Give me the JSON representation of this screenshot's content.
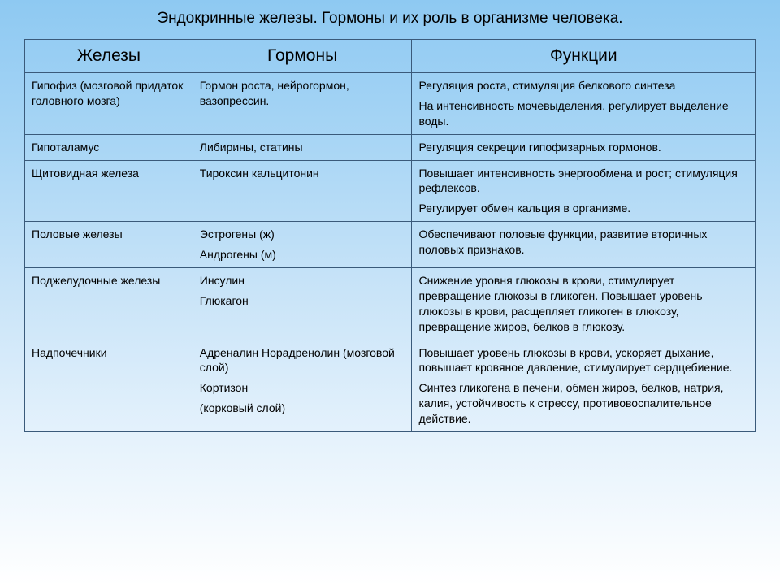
{
  "title": "Эндокринные железы. Гормоны и их роль в организме человека.",
  "columns": [
    "Железы",
    "Гормоны",
    "Функции"
  ],
  "column_widths_pct": [
    23,
    30,
    47
  ],
  "border_color": "#3a5a7a",
  "background_gradient": [
    "#8ec9f2",
    "#a9d6f5",
    "#c9e4f8",
    "#e5f2fc",
    "#ffffff"
  ],
  "title_fontsize_pt": 19,
  "header_fontsize_pt": 21,
  "cell_fontsize_pt": 14,
  "text_color": "#000000",
  "rows": [
    {
      "gland": "Гипофиз (мозговой придаток головного мозга)",
      "hormones": [
        "Гормон роста, нейрогормон, вазопрессин."
      ],
      "functions": [
        "Регуляция роста, стимуляция белкового синтеза",
        "На интенсивность мочевыделения, регулирует выделение воды."
      ]
    },
    {
      "gland": "Гипоталамус",
      "hormones": [
        "Либирины, статины"
      ],
      "functions": [
        "Регуляция секреции гипофизарных гормонов."
      ]
    },
    {
      "gland": "Щитовидная железа",
      "hormones": [
        "Тироксин кальцитонин"
      ],
      "functions": [
        "Повышает интенсивность энергообмена и рост; стимуляция рефлексов.",
        "Регулирует обмен кальция в организме."
      ]
    },
    {
      "gland": "Половые железы",
      "hormones": [
        "Эстрогены (ж)",
        "Андрогены (м)"
      ],
      "functions": [
        "Обеспечивают половые функции, развитие вторичных половых признаков."
      ]
    },
    {
      "gland": "Поджелудочные железы",
      "hormones": [
        "Инсулин",
        "Глюкагон"
      ],
      "functions": [
        "Снижение уровня глюкозы в крови, стимулирует превращение глюкозы в гликоген. Повышает уровень глюкозы в крови, расщепляет гликоген в глюкозу, превращение жиров, белков в глюкозу."
      ]
    },
    {
      "gland": "Надпочечники",
      "hormones": [
        "Адреналин Норадренолин (мозговой слой)",
        "Кортизон",
        "(корковый слой)"
      ],
      "functions": [
        "Повышает уровень глюкозы в крови, ускоряет дыхание, повышает кровяное давление, стимулирует сердцебиение.",
        "Синтез гликогена в печени, обмен жиров, белков, натрия, калия, устойчивость к стрессу, противовоспалительное действие."
      ]
    }
  ]
}
